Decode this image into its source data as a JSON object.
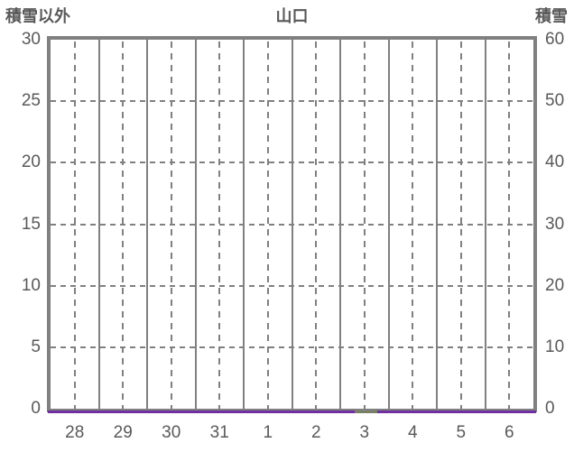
{
  "chart_data": {
    "type": "line",
    "title": "山口",
    "left_axis": {
      "label": "積雪以外",
      "min": 0,
      "max": 30,
      "tick_step": 5,
      "tick_labels": [
        "30",
        "25",
        "20",
        "15",
        "10",
        "5",
        "0"
      ]
    },
    "right_axis": {
      "label": "積雪",
      "min": 0,
      "max": 60,
      "tick_step": 10,
      "tick_labels": [
        "60",
        "50",
        "40",
        "30",
        "20",
        "10",
        "0"
      ]
    },
    "x_tick_labels": [
      "28",
      "29",
      "30",
      "31",
      "1",
      "2",
      "3",
      "4",
      "5",
      "6"
    ],
    "x_range_days": 10,
    "grid": {
      "frame_color": "#808080",
      "gridline_color": "#808080",
      "vertical_solid_at": "day_boundaries",
      "vertical_dashed_at": "day_midpoints",
      "horizontal_dashed_at_ticks": true
    },
    "background_color": "#FFFFFF",
    "text_color": "#595959",
    "series": [
      {
        "name": "non-snow-line",
        "color": "#7030A0",
        "value_constant": 0,
        "segments_day_units": [
          [
            0,
            6.28
          ],
          [
            6.75,
            10
          ]
        ]
      },
      {
        "name": "snow-line",
        "color": "#7A8068",
        "value_constant": 0,
        "segments_day_units": [
          [
            6.28,
            6.75
          ]
        ]
      }
    ]
  }
}
